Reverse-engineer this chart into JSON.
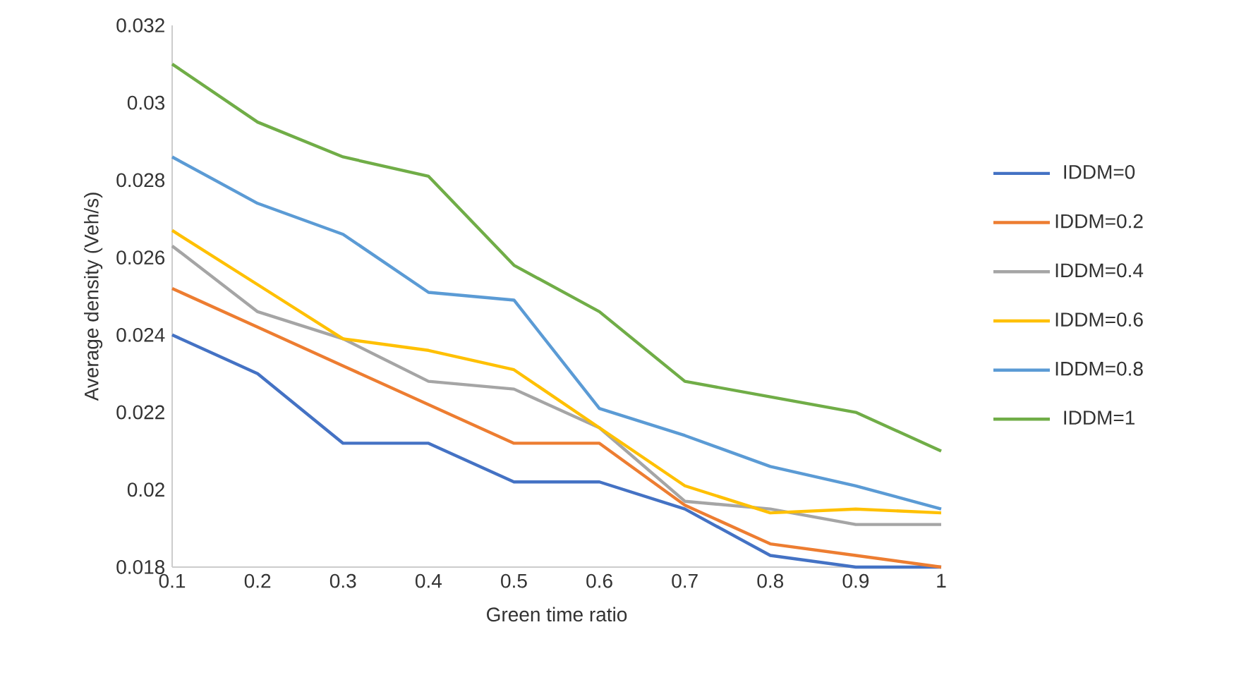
{
  "chart_data": {
    "type": "line",
    "xlabel": "Green time ratio",
    "ylabel": "Average density (Veh/s)",
    "x": [
      0.1,
      0.2,
      0.3,
      0.4,
      0.5,
      0.6,
      0.7,
      0.8,
      0.9,
      1
    ],
    "xlim": [
      0.1,
      1
    ],
    "xticks": [
      0.1,
      0.2,
      0.3,
      0.4,
      0.5,
      0.6,
      0.7,
      0.8,
      0.9,
      1
    ],
    "ylim": [
      0.018,
      0.032
    ],
    "yticks": [
      0.018,
      0.02,
      0.022,
      0.024,
      0.026,
      0.028,
      0.03,
      0.032
    ],
    "legend": "right",
    "series": [
      {
        "name": "IDDM=0",
        "color": "#4472c4",
        "values": [
          0.024,
          0.023,
          0.0212,
          0.0212,
          0.0202,
          0.0202,
          0.0195,
          0.0183,
          0.018,
          0.018
        ]
      },
      {
        "name": "IDDM=0.2",
        "color": "#ed7d31",
        "values": [
          0.0252,
          0.0242,
          0.0232,
          0.0222,
          0.0212,
          0.0212,
          0.0196,
          0.0186,
          0.0183,
          0.018
        ]
      },
      {
        "name": "IDDM=0.4",
        "color": "#a5a5a5",
        "values": [
          0.0263,
          0.0246,
          0.0239,
          0.0228,
          0.0226,
          0.0216,
          0.0197,
          0.0195,
          0.0191,
          0.0191
        ]
      },
      {
        "name": "IDDM=0.6",
        "color": "#ffc000",
        "values": [
          0.0267,
          0.0253,
          0.0239,
          0.0236,
          0.0231,
          0.0216,
          0.0201,
          0.0194,
          0.0195,
          0.0194
        ]
      },
      {
        "name": "IDDM=0.8",
        "color": "#5b9bd5",
        "values": [
          0.0286,
          0.0274,
          0.0266,
          0.0251,
          0.0249,
          0.0221,
          0.0214,
          0.0206,
          0.0201,
          0.0195
        ]
      },
      {
        "name": "IDDM=1",
        "color": "#70ad47",
        "values": [
          0.031,
          0.0295,
          0.0286,
          0.0281,
          0.0258,
          0.0246,
          0.0228,
          0.0224,
          0.022,
          0.021
        ]
      }
    ]
  }
}
